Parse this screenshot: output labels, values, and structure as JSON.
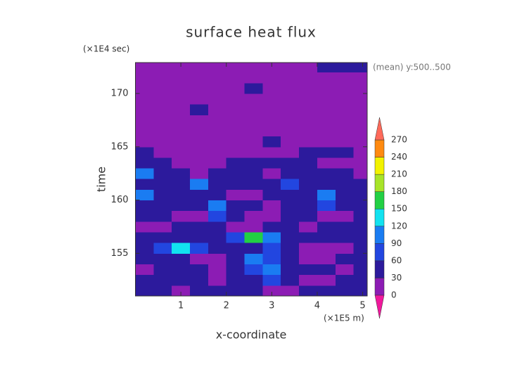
{
  "chart_data": {
    "type": "contour",
    "title": "surface heat flux",
    "x_label": "x-coordinate",
    "y_label": "time",
    "x_unit": "(×1E5 m)",
    "y_unit": "(×1E4 sec)",
    "annotation": "(mean) y:500..500",
    "xlim": [
      0,
      5.1
    ],
    "ylim": [
      151,
      172.9
    ],
    "xticks": [
      1,
      2,
      3,
      4,
      5
    ],
    "yticks": [
      155,
      160,
      165,
      170
    ],
    "levels": [
      0,
      30,
      60,
      90,
      120,
      150,
      180,
      210,
      240,
      270
    ],
    "colors": [
      "#f0189c",
      "#8c1cb4",
      "#2c1a9c",
      "#2246e0",
      "#1a7cf2",
      "#12e2f0",
      "#22d044",
      "#a8e428",
      "#f2f200",
      "#ff8a10",
      "#ff6a5a"
    ],
    "x": [
      0.2,
      0.6,
      1.0,
      1.4,
      1.8,
      2.2,
      2.6,
      3.0,
      3.4,
      3.8,
      4.2,
      4.6,
      5.0
    ],
    "y": [
      151.5,
      152.5,
      153.5,
      154.5,
      155.5,
      156.5,
      157.5,
      158.5,
      159.5,
      160.5,
      161.5,
      162.5,
      163.5,
      164.5,
      165.5,
      166.5,
      167.5,
      168.5,
      169.5,
      170.5,
      171.5,
      172.5
    ],
    "z": [
      [
        45,
        40,
        25,
        45,
        50,
        40,
        45,
        25,
        20,
        45,
        50,
        40,
        45
      ],
      [
        40,
        45,
        50,
        40,
        25,
        45,
        50,
        60,
        45,
        20,
        25,
        40,
        45
      ],
      [
        25,
        50,
        45,
        40,
        20,
        45,
        70,
        90,
        50,
        45,
        40,
        25,
        45
      ],
      [
        45,
        40,
        50,
        25,
        20,
        40,
        110,
        60,
        45,
        25,
        20,
        45,
        40
      ],
      [
        50,
        60,
        140,
        70,
        45,
        40,
        50,
        80,
        45,
        25,
        20,
        25,
        45
      ],
      [
        40,
        45,
        50,
        45,
        40,
        60,
        170,
        90,
        40,
        45,
        50,
        40,
        45
      ],
      [
        25,
        20,
        45,
        55,
        40,
        25,
        20,
        45,
        40,
        25,
        45,
        50,
        40
      ],
      [
        40,
        45,
        25,
        20,
        65,
        45,
        25,
        20,
        45,
        40,
        25,
        20,
        45
      ],
      [
        45,
        40,
        50,
        45,
        95,
        45,
        40,
        25,
        45,
        50,
        60,
        45,
        40
      ],
      [
        110,
        50,
        45,
        40,
        45,
        25,
        20,
        45,
        40,
        45,
        90,
        45,
        40
      ],
      [
        45,
        40,
        45,
        90,
        50,
        40,
        45,
        40,
        75,
        45,
        50,
        40,
        45
      ],
      [
        100,
        45,
        40,
        25,
        45,
        40,
        45,
        25,
        45,
        50,
        45,
        40,
        25
      ],
      [
        45,
        40,
        25,
        20,
        20,
        45,
        40,
        50,
        45,
        40,
        25,
        20,
        20
      ],
      [
        40,
        20,
        15,
        15,
        15,
        15,
        20,
        15,
        15,
        40,
        45,
        40,
        20
      ],
      [
        15,
        15,
        15,
        15,
        15,
        15,
        15,
        40,
        15,
        15,
        15,
        15,
        15
      ],
      [
        15,
        15,
        15,
        15,
        15,
        15,
        15,
        15,
        15,
        15,
        15,
        15,
        15
      ],
      [
        15,
        15,
        15,
        15,
        15,
        15,
        15,
        15,
        15,
        15,
        15,
        15,
        15
      ],
      [
        15,
        15,
        15,
        40,
        15,
        15,
        15,
        15,
        15,
        15,
        15,
        15,
        15
      ],
      [
        15,
        15,
        15,
        15,
        15,
        15,
        15,
        15,
        15,
        15,
        15,
        15,
        15
      ],
      [
        15,
        15,
        15,
        15,
        15,
        15,
        40,
        15,
        15,
        15,
        15,
        15,
        15
      ],
      [
        15,
        15,
        15,
        15,
        15,
        15,
        15,
        15,
        15,
        15,
        15,
        15,
        15
      ],
      [
        15,
        15,
        15,
        15,
        15,
        15,
        15,
        15,
        15,
        15,
        40,
        40,
        40
      ]
    ]
  }
}
